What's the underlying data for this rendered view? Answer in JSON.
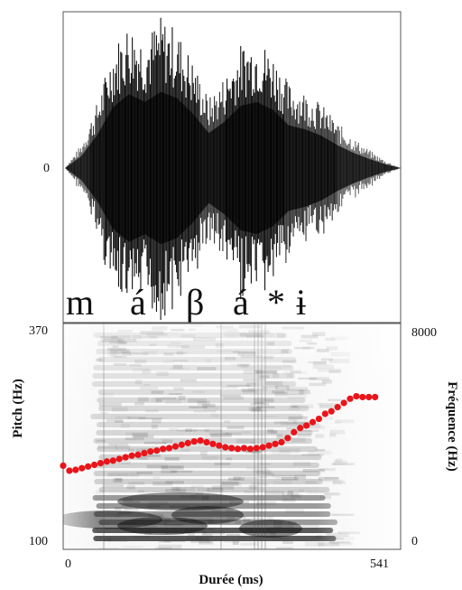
{
  "chart_data": [
    {
      "type": "line",
      "title": "",
      "ylabel": "",
      "ytick_zero": "0",
      "series": [
        {
          "values": [
            0,
            0.15,
            0.42,
            0.78,
            0.95,
            0.85,
            0.98,
            0.9,
            0.7,
            0.45,
            0.6,
            0.8,
            0.85,
            0.75,
            0.55,
            0.5,
            0.42,
            0.3,
            0.2,
            0.12,
            0.05,
            0
          ]
        }
      ]
    },
    {
      "type": "heatmap",
      "segments": [
        "m",
        "á",
        "β",
        "á",
        "*",
        "ɨ"
      ],
      "xlabel": "Durée (ms)",
      "ylabel_left": "Pitch (Hz)",
      "ylabel_right": "Fréquence (Hz)",
      "xlim": [
        0,
        541
      ],
      "x_tick_labels": [
        "0",
        "541"
      ],
      "ylim_left": [
        100,
        370
      ],
      "y_tick_labels_left": [
        "100",
        "370"
      ],
      "ylim_right": [
        0,
        8000
      ],
      "y_tick_labels_right": [
        "0",
        "8000"
      ],
      "series": [
        {
          "color": "#e8151b",
          "x": [
            0,
            10,
            20,
            30,
            40,
            50,
            60,
            70,
            80,
            90,
            100,
            110,
            120,
            130,
            140,
            150,
            160,
            170,
            180,
            190,
            200,
            210,
            220,
            230,
            240,
            250,
            260,
            270,
            280,
            290,
            300,
            310,
            320,
            330,
            340,
            350,
            360,
            370,
            380,
            390,
            400,
            410,
            420,
            430,
            440,
            450,
            460,
            470,
            480,
            490,
            500
          ],
          "y": [
            200,
            194,
            195,
            197,
            199,
            201,
            203,
            205,
            206,
            208,
            210,
            212,
            213,
            215,
            217,
            218,
            220,
            221,
            223,
            225,
            227,
            229,
            230,
            228,
            226,
            224,
            222,
            221,
            220,
            221,
            220,
            221,
            222,
            224,
            226,
            228,
            233,
            240,
            245,
            248,
            252,
            256,
            262,
            265,
            270,
            275,
            280,
            283,
            282,
            282,
            282
          ]
        }
      ]
    }
  ]
}
